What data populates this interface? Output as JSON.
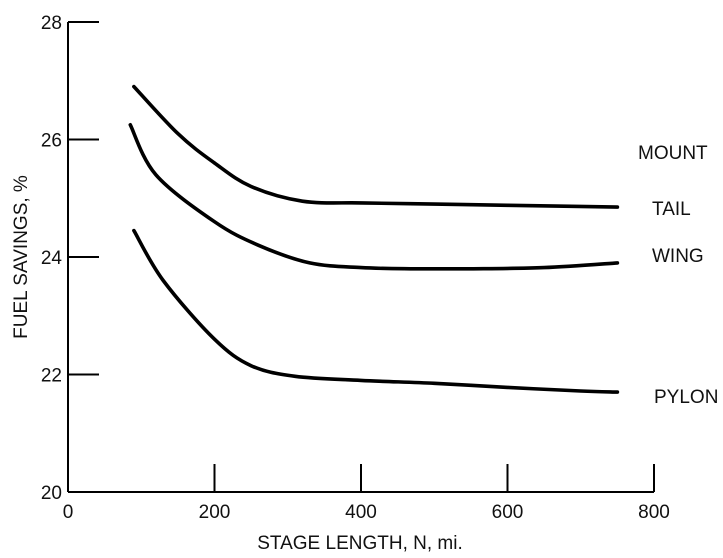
{
  "chart_data": {
    "type": "line",
    "title": "",
    "xlabel": "STAGE LENGTH, N, mi.",
    "ylabel": "FUEL SAVINGS, %",
    "xlim": [
      0,
      800
    ],
    "ylim": [
      20,
      28
    ],
    "xticks": [
      0,
      200,
      400,
      600,
      800
    ],
    "yticks": [
      20,
      22,
      24,
      26,
      28
    ],
    "grid": false,
    "legend_heading": "MOUNT",
    "series": [
      {
        "name": "TAIL",
        "x": [
          90,
          150,
          200,
          250,
          320,
          400,
          500,
          600,
          750
        ],
        "y": [
          26.9,
          26.1,
          25.6,
          25.2,
          24.95,
          24.92,
          24.9,
          24.88,
          24.85
        ]
      },
      {
        "name": "WING",
        "x": [
          85,
          120,
          200,
          260,
          330,
          400,
          470,
          550,
          650,
          750
        ],
        "y": [
          26.25,
          25.4,
          24.6,
          24.2,
          23.9,
          23.82,
          23.8,
          23.8,
          23.82,
          23.9
        ]
      },
      {
        "name": "PYLON",
        "x": [
          90,
          130,
          200,
          250,
          310,
          400,
          500,
          600,
          700,
          750
        ],
        "y": [
          24.45,
          23.6,
          22.6,
          22.15,
          21.97,
          21.9,
          21.85,
          21.78,
          21.72,
          21.7
        ]
      }
    ]
  }
}
